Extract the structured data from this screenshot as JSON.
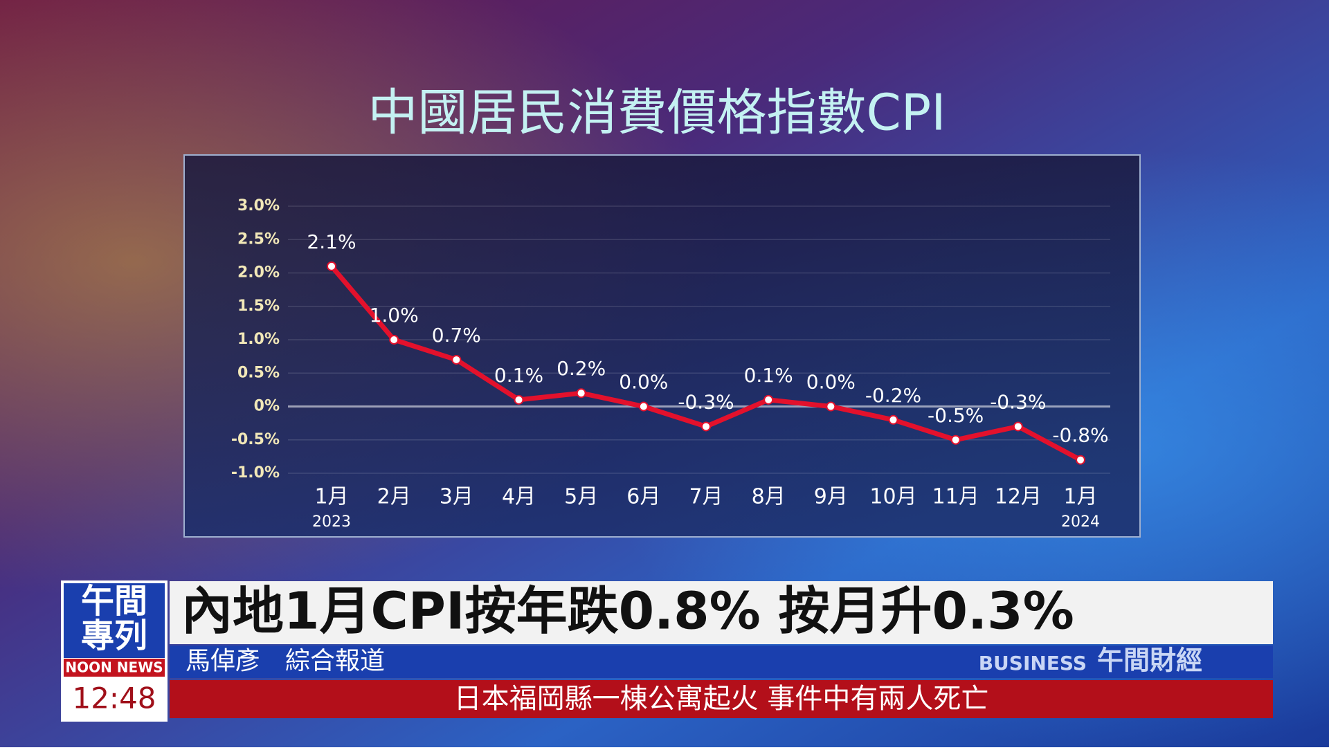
{
  "chart_data": {
    "type": "line",
    "title": "中國居民消費價格指數CPI",
    "categories": [
      "1月",
      "2月",
      "3月",
      "4月",
      "5月",
      "6月",
      "7月",
      "8月",
      "9月",
      "10月",
      "11月",
      "12月",
      "1月"
    ],
    "x_year_labels": [
      "2023",
      null,
      null,
      null,
      null,
      null,
      null,
      null,
      null,
      null,
      null,
      null,
      "2024"
    ],
    "series": [
      {
        "color": "#e3112c",
        "values": [
          2.1,
          1.0,
          0.7,
          0.1,
          0.2,
          0.0,
          -0.3,
          0.1,
          0.0,
          -0.2,
          -0.5,
          -0.3,
          -0.8
        ],
        "value_labels": [
          "2.1%",
          "1.0%",
          "0.7%",
          "0.1%",
          "0.2%",
          "0.0%",
          "-0.3%",
          "0.1%",
          "0.0%",
          "-0.2%",
          "-0.5%",
          "-0.3%",
          "-0.8%"
        ]
      }
    ],
    "ylim": [
      -1,
      3
    ],
    "yticks": [
      {
        "value": 3,
        "label": "3.0%"
      },
      {
        "value": 2.5,
        "label": "2.5%"
      },
      {
        "value": 2,
        "label": "2.0%"
      },
      {
        "value": 1.5,
        "label": "1.5%"
      },
      {
        "value": 1,
        "label": "1.0%"
      },
      {
        "value": 0.5,
        "label": "0.5%"
      },
      {
        "value": 0,
        "label": "0%"
      },
      {
        "value": -0.5,
        "label": "-0.5%"
      },
      {
        "value": -1,
        "label": "-1.0%"
      }
    ],
    "grid": true
  },
  "banner": {
    "logo_title": [
      "午間",
      "專列"
    ],
    "logo_sub": "NOON NEWS",
    "time": "12:48",
    "headline": "內地1月CPI按年跌0.8% 按月升0.3%",
    "reporter": "馬倬彥　綜合報道",
    "brand_en": "BUSINESS",
    "brand_zh": "午間財經",
    "ticker": "日本福岡縣一棟公寓起火  事件中有兩人死亡"
  }
}
